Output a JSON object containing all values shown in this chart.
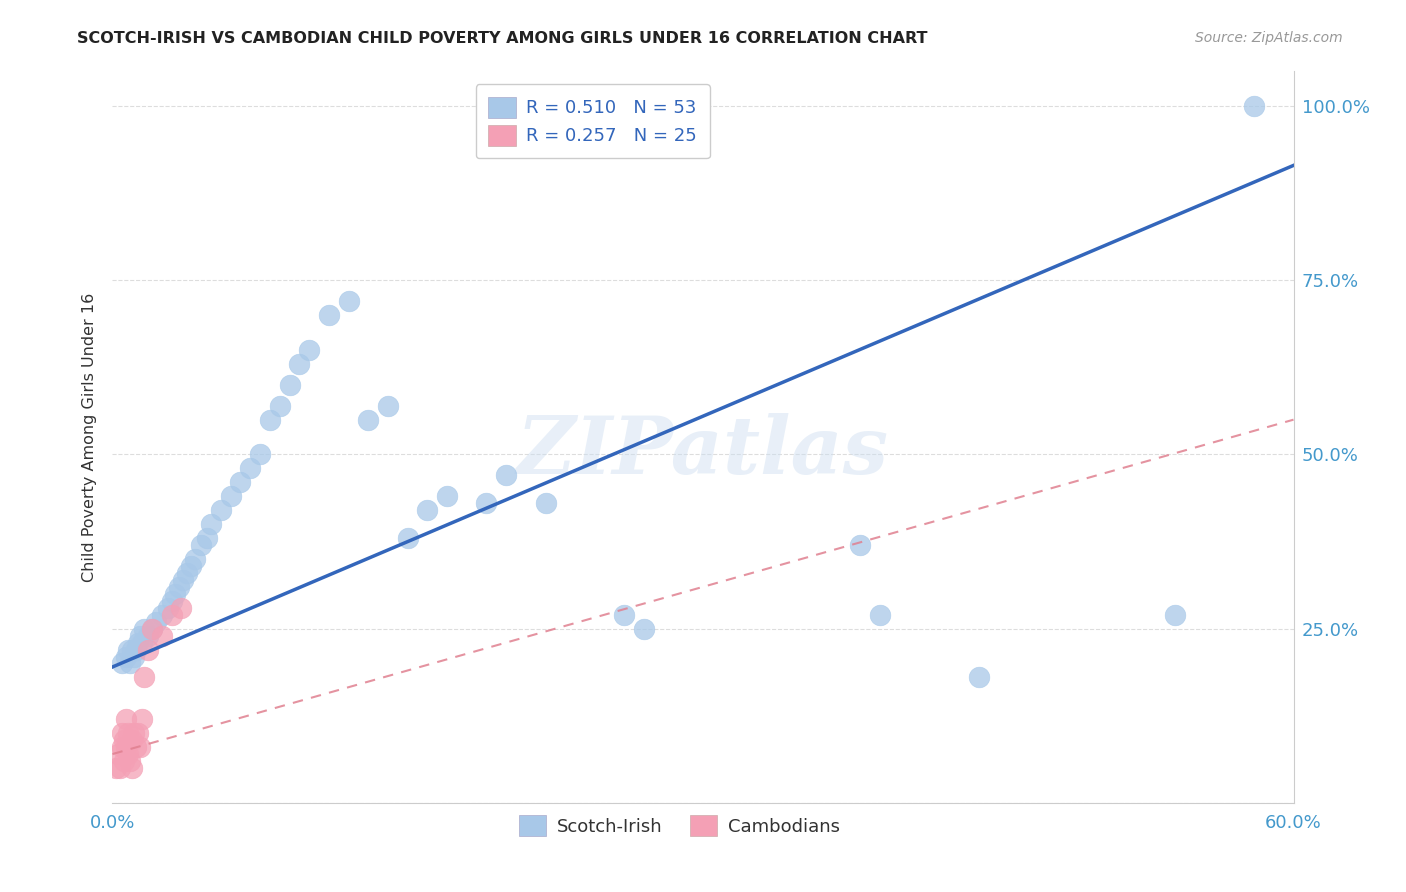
{
  "title": "SCOTCH-IRISH VS CAMBODIAN CHILD POVERTY AMONG GIRLS UNDER 16 CORRELATION CHART",
  "source": "Source: ZipAtlas.com",
  "ylabel_label": "Child Poverty Among Girls Under 16",
  "watermark": "ZIPatlas",
  "scotch_irish_R": 0.51,
  "scotch_irish_N": 53,
  "cambodian_R": 0.257,
  "cambodian_N": 25,
  "xlim": [
    0.0,
    0.6
  ],
  "ylim": [
    0.0,
    1.05
  ],
  "blue_color": "#a8c8e8",
  "pink_color": "#f4a0b5",
  "blue_line_color": "#3366bb",
  "pink_line_color": "#e08090",
  "tick_label_color": "#4499cc",
  "background_color": "#ffffff",
  "grid_color": "#dddddd",
  "scotch_irish_x": [
    0.005,
    0.007,
    0.008,
    0.009,
    0.01,
    0.011,
    0.012,
    0.013,
    0.014,
    0.015,
    0.016,
    0.018,
    0.02,
    0.022,
    0.025,
    0.028,
    0.03,
    0.032,
    0.034,
    0.036,
    0.038,
    0.04,
    0.042,
    0.045,
    0.048,
    0.05,
    0.055,
    0.06,
    0.065,
    0.07,
    0.075,
    0.08,
    0.085,
    0.09,
    0.095,
    0.1,
    0.11,
    0.12,
    0.13,
    0.14,
    0.15,
    0.16,
    0.17,
    0.19,
    0.2,
    0.22,
    0.26,
    0.27,
    0.38,
    0.39,
    0.44,
    0.54,
    0.58
  ],
  "scotch_irish_y": [
    0.2,
    0.21,
    0.22,
    0.2,
    0.22,
    0.21,
    0.22,
    0.23,
    0.24,
    0.23,
    0.25,
    0.24,
    0.25,
    0.26,
    0.27,
    0.28,
    0.29,
    0.3,
    0.31,
    0.32,
    0.33,
    0.34,
    0.35,
    0.37,
    0.38,
    0.4,
    0.42,
    0.44,
    0.46,
    0.48,
    0.5,
    0.55,
    0.57,
    0.6,
    0.63,
    0.65,
    0.7,
    0.72,
    0.55,
    0.57,
    0.38,
    0.42,
    0.44,
    0.43,
    0.47,
    0.43,
    0.27,
    0.25,
    0.37,
    0.27,
    0.18,
    0.27,
    1.0
  ],
  "cambodian_x": [
    0.002,
    0.003,
    0.004,
    0.005,
    0.005,
    0.006,
    0.006,
    0.007,
    0.007,
    0.008,
    0.008,
    0.009,
    0.01,
    0.01,
    0.011,
    0.012,
    0.013,
    0.014,
    0.015,
    0.016,
    0.018,
    0.02,
    0.025,
    0.03,
    0.035
  ],
  "cambodian_y": [
    0.05,
    0.07,
    0.05,
    0.08,
    0.1,
    0.06,
    0.09,
    0.08,
    0.12,
    0.07,
    0.1,
    0.06,
    0.09,
    0.05,
    0.1,
    0.08,
    0.1,
    0.08,
    0.12,
    0.18,
    0.22,
    0.25,
    0.24,
    0.27,
    0.28
  ],
  "si_line_x": [
    0.0,
    0.6
  ],
  "si_line_y": [
    0.195,
    0.915
  ],
  "cam_line_x": [
    0.0,
    0.6
  ],
  "cam_line_y": [
    0.07,
    0.55
  ]
}
